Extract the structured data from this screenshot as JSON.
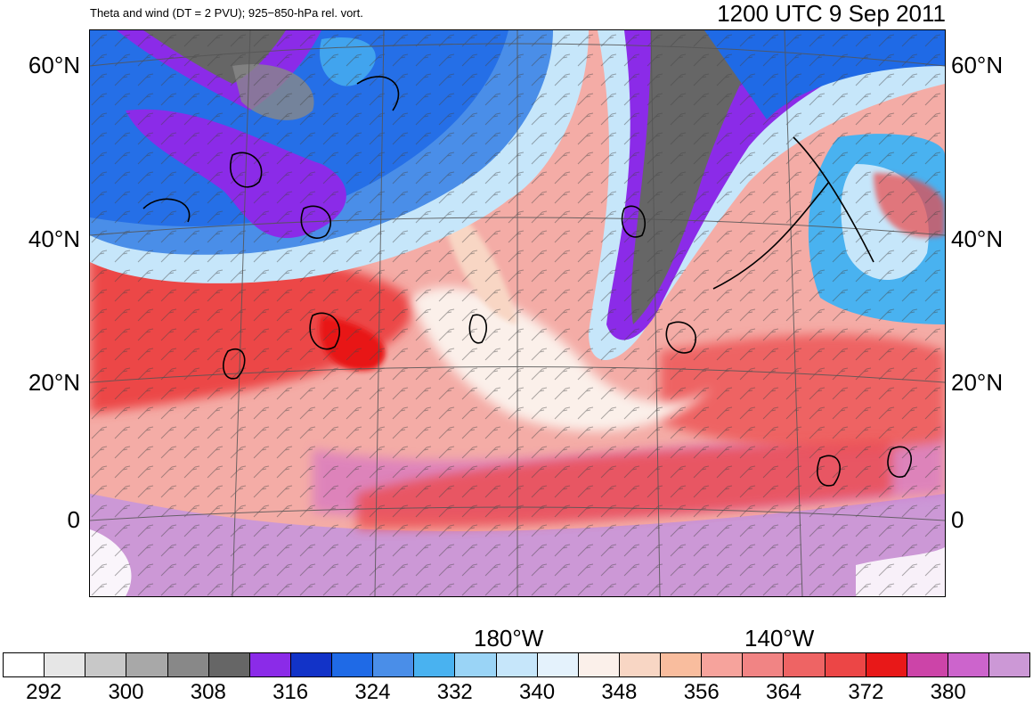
{
  "header": {
    "subtitle": "Theta and wind (DT = 2 PVU); 925−850-hPa rel. vort.",
    "datetime": "1200 UTC 9 Sep 2011"
  },
  "latitude_labels": [
    "60°N",
    "40°N",
    "20°N",
    "0"
  ],
  "longitude_labels": [
    "180°W",
    "140°W"
  ],
  "colorbar": {
    "colors": [
      "#ffffff",
      "#e6e6e6",
      "#c8c8c8",
      "#a8a8a8",
      "#888888",
      "#666666",
      "#8b2be8",
      "#1233c8",
      "#1f6ae6",
      "#4a8ee8",
      "#49b2f0",
      "#9ad4f6",
      "#c6e6fa",
      "#e4f2fc",
      "#fbf0ea",
      "#f8d6c4",
      "#f9bd9e",
      "#f6a39c",
      "#f18484",
      "#ee6464",
      "#ec4646",
      "#e81818",
      "#cc44a8",
      "#cc64cc",
      "#cc98d6"
    ],
    "tick_labels": [
      "292",
      "300",
      "308",
      "316",
      "324",
      "332",
      "340",
      "348",
      "356",
      "364",
      "372",
      "380"
    ]
  }
}
